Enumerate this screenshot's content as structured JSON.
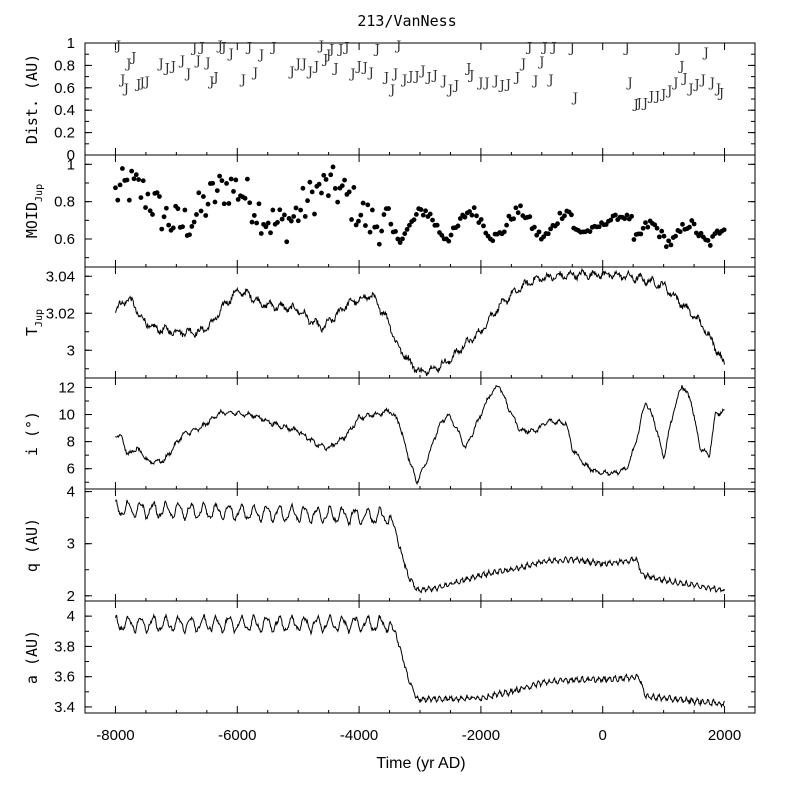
{
  "chart_data": {
    "title": "213/VanNess",
    "xlabel": "Time (yr AD)",
    "xlim": [
      -8500,
      2500
    ],
    "x_ticks": [
      "-8000",
      "-6000",
      "-4000",
      "-2000",
      "0",
      "2000"
    ],
    "x_tick_values": [
      -8000,
      -6000,
      -4000,
      -2000,
      0,
      2000
    ],
    "panels": [
      {
        "id": "dist",
        "type": "scatter",
        "marker": "J",
        "ylabel": "Dist. (AU)",
        "ylim": [
          0,
          1
        ],
        "y_ticks": [
          "0",
          "0.2",
          "0.4",
          "0.6",
          "0.8",
          "1"
        ],
        "y_tick_values": [
          0,
          0.2,
          0.4,
          0.6,
          0.8,
          1
        ],
        "points": [
          [
            -7950,
            0.98
          ],
          [
            -7880,
            0.68
          ],
          [
            -7820,
            0.6
          ],
          [
            -7780,
            0.82
          ],
          [
            -7700,
            0.88
          ],
          [
            -7620,
            0.64
          ],
          [
            -7560,
            0.65
          ],
          [
            -7480,
            0.66
          ],
          [
            -7250,
            0.82
          ],
          [
            -7150,
            0.78
          ],
          [
            -7050,
            0.8
          ],
          [
            -6900,
            0.85
          ],
          [
            -6800,
            0.73
          ],
          [
            -6700,
            0.96
          ],
          [
            -6640,
            0.85
          ],
          [
            -6580,
            0.97
          ],
          [
            -6480,
            0.83
          ],
          [
            -6420,
            0.66
          ],
          [
            -6350,
            0.7
          ],
          [
            -6280,
            0.98
          ],
          [
            -6220,
            0.97
          ],
          [
            -6100,
            0.91
          ],
          [
            -5900,
            0.68
          ],
          [
            -5800,
            0.97
          ],
          [
            -5700,
            0.74
          ],
          [
            -5600,
            0.9
          ],
          [
            -5400,
            0.97
          ],
          [
            -5100,
            0.75
          ],
          [
            -5000,
            0.82
          ],
          [
            -4900,
            0.82
          ],
          [
            -4800,
            0.75
          ],
          [
            -4700,
            0.8
          ],
          [
            -4620,
            0.98
          ],
          [
            -4550,
            0.86
          ],
          [
            -4500,
            0.9
          ],
          [
            -4450,
            0.95
          ],
          [
            -4380,
            0.78
          ],
          [
            -4300,
            0.95
          ],
          [
            -4200,
            0.97
          ],
          [
            -4100,
            0.73
          ],
          [
            -4000,
            0.8
          ],
          [
            -3900,
            0.79
          ],
          [
            -3800,
            0.74
          ],
          [
            -3700,
            0.95
          ],
          [
            -3550,
            0.7
          ],
          [
            -3450,
            0.59
          ],
          [
            -3400,
            0.73
          ],
          [
            -3350,
            0.98
          ],
          [
            -3250,
            0.68
          ],
          [
            -3150,
            0.71
          ],
          [
            -3050,
            0.71
          ],
          [
            -2950,
            0.76
          ],
          [
            -2850,
            0.7
          ],
          [
            -2750,
            0.72
          ],
          [
            -2600,
            0.67
          ],
          [
            -2500,
            0.59
          ],
          [
            -2400,
            0.63
          ],
          [
            -2200,
            0.78
          ],
          [
            -2150,
            0.72
          ],
          [
            -2000,
            0.65
          ],
          [
            -1900,
            0.65
          ],
          [
            -1750,
            0.67
          ],
          [
            -1650,
            0.63
          ],
          [
            -1550,
            0.64
          ],
          [
            -1400,
            0.7
          ],
          [
            -1300,
            0.82
          ],
          [
            -1200,
            0.97
          ],
          [
            -1100,
            0.67
          ],
          [
            -1000,
            0.84
          ],
          [
            -950,
            0.97
          ],
          [
            -850,
            0.68
          ],
          [
            -800,
            0.97
          ],
          [
            -500,
            0.96
          ],
          [
            -450,
            0.52
          ],
          [
            400,
            0.96
          ],
          [
            450,
            0.65
          ],
          [
            550,
            0.46
          ],
          [
            600,
            0.47
          ],
          [
            700,
            0.47
          ],
          [
            800,
            0.53
          ],
          [
            900,
            0.53
          ],
          [
            1000,
            0.55
          ],
          [
            1100,
            0.58
          ],
          [
            1200,
            0.65
          ],
          [
            1250,
            0.96
          ],
          [
            1300,
            0.8
          ],
          [
            1350,
            0.69
          ],
          [
            1450,
            0.6
          ],
          [
            1550,
            0.64
          ],
          [
            1650,
            0.68
          ],
          [
            1700,
            0.92
          ],
          [
            1800,
            0.65
          ],
          [
            1900,
            0.6
          ],
          [
            1950,
            0.56
          ]
        ]
      },
      {
        "id": "moid",
        "type": "scatter",
        "marker": "dot",
        "ylabel": "MOID",
        "ylabel_sub": "Jup",
        "ylim": [
          0.45,
          1.05
        ],
        "y_ticks": [
          "0.6",
          "0.8",
          "1"
        ],
        "y_tick_values": [
          0.6,
          0.8,
          1
        ]
      },
      {
        "id": "tjup",
        "type": "line",
        "ylabel": "T",
        "ylabel_sub": "Jup",
        "ylim": [
          2.985,
          3.045
        ],
        "y_ticks": [
          "3",
          "3.02",
          "3.04"
        ],
        "y_tick_values": [
          3,
          3.02,
          3.04
        ],
        "anchors": [
          [
            -8000,
            3.022
          ],
          [
            -7800,
            3.028
          ],
          [
            -7700,
            3.025
          ],
          [
            -7600,
            3.018
          ],
          [
            -7400,
            3.012
          ],
          [
            -7000,
            3.01
          ],
          [
            -6600,
            3.01
          ],
          [
            -6400,
            3.015
          ],
          [
            -6200,
            3.025
          ],
          [
            -6000,
            3.032
          ],
          [
            -5800,
            3.03
          ],
          [
            -5600,
            3.025
          ],
          [
            -5400,
            3.024
          ],
          [
            -5000,
            3.022
          ],
          [
            -4800,
            3.016
          ],
          [
            -4600,
            3.012
          ],
          [
            -4400,
            3.018
          ],
          [
            -4200,
            3.025
          ],
          [
            -4000,
            3.027
          ],
          [
            -3800,
            3.03
          ],
          [
            -3600,
            3.02
          ],
          [
            -3500,
            3.015
          ],
          [
            -3400,
            3.004
          ],
          [
            -3200,
            2.995
          ],
          [
            -3000,
            2.988
          ],
          [
            -2700,
            2.991
          ],
          [
            -2500,
            2.995
          ],
          [
            -2300,
            3.002
          ],
          [
            -2000,
            3.01
          ],
          [
            -1800,
            3.02
          ],
          [
            -1500,
            3.03
          ],
          [
            -1200,
            3.037
          ],
          [
            -1000,
            3.039
          ],
          [
            -700,
            3.04
          ],
          [
            -400,
            3.041
          ],
          [
            0,
            3.041
          ],
          [
            400,
            3.04
          ],
          [
            700,
            3.038
          ],
          [
            1000,
            3.035
          ],
          [
            1300,
            3.025
          ],
          [
            1600,
            3.015
          ],
          [
            1800,
            3.005
          ],
          [
            2000,
            2.992
          ]
        ],
        "noise": 0.0028,
        "period": 190
      },
      {
        "id": "incl",
        "type": "line",
        "ylabel": "i (°)",
        "ylim": [
          4.5,
          12.7
        ],
        "y_ticks": [
          "6",
          "8",
          "10",
          "12"
        ],
        "y_tick_values": [
          6,
          8,
          10,
          12
        ],
        "anchors": [
          [
            -8000,
            8.5
          ],
          [
            -7900,
            8.4
          ],
          [
            -7800,
            7
          ],
          [
            -7650,
            7.5
          ],
          [
            -7450,
            6.5
          ],
          [
            -7200,
            6.6
          ],
          [
            -6900,
            8.5
          ],
          [
            -6600,
            9
          ],
          [
            -6300,
            10.1
          ],
          [
            -6000,
            10.1
          ],
          [
            -5700,
            9.9
          ],
          [
            -5400,
            9.3
          ],
          [
            -5000,
            8.8
          ],
          [
            -4700,
            7.8
          ],
          [
            -4500,
            7.5
          ],
          [
            -4200,
            8.5
          ],
          [
            -4000,
            9.8
          ],
          [
            -3700,
            10
          ],
          [
            -3500,
            10.3
          ],
          [
            -3350,
            9.5
          ],
          [
            -3200,
            7
          ],
          [
            -3050,
            5
          ],
          [
            -2900,
            6.5
          ],
          [
            -2700,
            9
          ],
          [
            -2550,
            10
          ],
          [
            -2400,
            9
          ],
          [
            -2250,
            7.5
          ],
          [
            -2050,
            9.5
          ],
          [
            -1850,
            11.5
          ],
          [
            -1700,
            12.2
          ],
          [
            -1550,
            10.5
          ],
          [
            -1350,
            8.8
          ],
          [
            -1100,
            8.8
          ],
          [
            -900,
            9.5
          ],
          [
            -600,
            9.4
          ],
          [
            -500,
            7.5
          ],
          [
            -300,
            6.3
          ],
          [
            -100,
            5.7
          ],
          [
            200,
            5.7
          ],
          [
            400,
            6
          ],
          [
            550,
            8
          ],
          [
            700,
            11
          ],
          [
            850,
            9.5
          ],
          [
            1000,
            6.8
          ],
          [
            1150,
            10
          ],
          [
            1300,
            12.2
          ],
          [
            1450,
            11
          ],
          [
            1600,
            7.5
          ],
          [
            1750,
            7
          ],
          [
            1850,
            10
          ],
          [
            2000,
            10.3
          ]
        ],
        "noise": 0.22,
        "period": 150
      },
      {
        "id": "q",
        "type": "line",
        "ylabel": "q (AU)",
        "ylim": [
          1.9,
          4.05
        ],
        "y_ticks": [
          "2",
          "3",
          "4"
        ],
        "y_tick_values": [
          2,
          3,
          4
        ],
        "anchors": [
          [
            -8000,
            3.8
          ],
          [
            -3500,
            3.65
          ],
          [
            -3350,
            3.0
          ],
          [
            -3200,
            2.4
          ],
          [
            -3050,
            2.1
          ],
          [
            -2700,
            2.15
          ],
          [
            -2300,
            2.3
          ],
          [
            -2000,
            2.4
          ],
          [
            -1500,
            2.5
          ],
          [
            -1000,
            2.65
          ],
          [
            -500,
            2.7
          ],
          [
            0,
            2.62
          ],
          [
            300,
            2.65
          ],
          [
            550,
            2.7
          ],
          [
            650,
            2.4
          ],
          [
            1000,
            2.3
          ],
          [
            1500,
            2.2
          ],
          [
            2000,
            2.1
          ]
        ],
        "osc_amp": 0.27,
        "osc_period": 207,
        "osc_end": -3450,
        "noise": 0.06
      },
      {
        "id": "a",
        "type": "line",
        "ylabel": "a (AU)",
        "ylim": [
          3.36,
          4.1
        ],
        "y_ticks": [
          "3.4",
          "3.6",
          "3.8",
          "4"
        ],
        "y_tick_values": [
          3.4,
          3.6,
          3.8,
          4
        ],
        "anchors": [
          [
            -8000,
            3.99
          ],
          [
            -3500,
            3.99
          ],
          [
            -3350,
            3.82
          ],
          [
            -3200,
            3.6
          ],
          [
            -3050,
            3.45
          ],
          [
            -2000,
            3.46
          ],
          [
            -1500,
            3.5
          ],
          [
            -1000,
            3.56
          ],
          [
            -500,
            3.58
          ],
          [
            0,
            3.58
          ],
          [
            300,
            3.59
          ],
          [
            600,
            3.6
          ],
          [
            700,
            3.47
          ],
          [
            1200,
            3.45
          ],
          [
            2000,
            3.42
          ]
        ],
        "osc_amp": 0.085,
        "osc_period": 207,
        "osc_end": -3450,
        "noise": 0.022
      }
    ]
  }
}
